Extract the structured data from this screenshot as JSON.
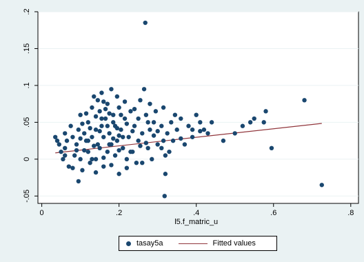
{
  "chart_data": {
    "type": "scatter",
    "title": "",
    "xlabel": "l5.f_matric_u",
    "ylabel": "",
    "xlim": [
      -0.01,
      0.82
    ],
    "ylim": [
      -0.06,
      0.2
    ],
    "xticks": [
      0,
      0.2,
      0.4,
      0.6,
      0.8
    ],
    "xtick_labels": [
      "0",
      ".2",
      ".4",
      ".6",
      ".8"
    ],
    "yticks": [
      -0.05,
      0,
      0.05,
      0.1,
      0.15,
      0.2
    ],
    "ytick_labels": [
      "-.05",
      "0",
      ".05",
      ".1",
      ".15",
      ".2"
    ],
    "grid": "horizontal",
    "legend_position": "bottom",
    "colors": {
      "scatter": "#1a476f",
      "fit": "#90353b",
      "background": "#eaf2f3",
      "plot_background": "#ffffff"
    },
    "series": [
      {
        "name": "tasay5a",
        "kind": "scatter",
        "points": [
          [
            0.035,
            0.03
          ],
          [
            0.04,
            0.025
          ],
          [
            0.045,
            0.02
          ],
          [
            0.05,
            0.01
          ],
          [
            0.055,
            0.0
          ],
          [
            0.06,
            0.015
          ],
          [
            0.065,
            0.025
          ],
          [
            0.07,
            -0.01
          ],
          [
            0.075,
            0.045
          ],
          [
            0.08,
            0.03
          ],
          [
            0.085,
            0.005
          ],
          [
            0.09,
            0.02
          ],
          [
            0.095,
            0.04
          ],
          [
            0.1,
            0.06
          ],
          [
            0.1,
            0.0
          ],
          [
            0.105,
            -0.015
          ],
          [
            0.11,
            0.035
          ],
          [
            0.115,
            0.025
          ],
          [
            0.12,
            0.05
          ],
          [
            0.12,
            0.01
          ],
          [
            0.125,
            -0.005
          ],
          [
            0.13,
            0.07
          ],
          [
            0.13,
            0.03
          ],
          [
            0.135,
            0.085
          ],
          [
            0.14,
            0.04
          ],
          [
            0.14,
            0.0
          ],
          [
            0.145,
            0.02
          ],
          [
            0.15,
            0.065
          ],
          [
            0.15,
            0.015
          ],
          [
            0.155,
            0.09
          ],
          [
            0.155,
            0.045
          ],
          [
            0.16,
            0.03
          ],
          [
            0.16,
            -0.01
          ],
          [
            0.165,
            0.055
          ],
          [
            0.17,
            0.075
          ],
          [
            0.17,
            0.01
          ],
          [
            0.175,
            0.035
          ],
          [
            0.18,
            0.095
          ],
          [
            0.18,
            0.02
          ],
          [
            0.185,
            0.06
          ],
          [
            0.19,
            0.005
          ],
          [
            0.19,
            0.045
          ],
          [
            0.195,
            0.025
          ],
          [
            0.2,
            0.07
          ],
          [
            0.2,
            -0.02
          ],
          [
            0.205,
            0.04
          ],
          [
            0.21,
            0.015
          ],
          [
            0.215,
            0.055
          ],
          [
            0.22,
            0.0
          ],
          [
            0.225,
            0.03
          ],
          [
            0.23,
            0.065
          ],
          [
            0.235,
            0.01
          ],
          [
            0.24,
            0.045
          ],
          [
            0.245,
            -0.005
          ],
          [
            0.25,
            0.025
          ],
          [
            0.255,
            0.08
          ],
          [
            0.26,
            0.035
          ],
          [
            0.265,
            0.095
          ],
          [
            0.268,
            0.185
          ],
          [
            0.27,
            0.06
          ],
          [
            0.275,
            0.015
          ],
          [
            0.28,
            0.04
          ],
          [
            0.285,
            0.0
          ],
          [
            0.29,
            0.05
          ],
          [
            0.3,
            0.02
          ],
          [
            0.31,
            0.045
          ],
          [
            0.315,
            0.07
          ],
          [
            0.32,
            -0.02
          ],
          [
            0.32,
            0.005
          ],
          [
            0.325,
            0.035
          ],
          [
            0.33,
            0.01
          ],
          [
            0.335,
            0.05
          ],
          [
            0.34,
            0.025
          ],
          [
            0.35,
            0.04
          ],
          [
            0.36,
            0.055
          ],
          [
            0.37,
            0.02
          ],
          [
            0.38,
            0.045
          ],
          [
            0.39,
            0.03
          ],
          [
            0.4,
            0.06
          ],
          [
            0.41,
            0.05
          ],
          [
            0.42,
            0.04
          ],
          [
            0.43,
            0.035
          ],
          [
            0.47,
            0.025
          ],
          [
            0.5,
            0.035
          ],
          [
            0.52,
            0.045
          ],
          [
            0.54,
            0.05
          ],
          [
            0.55,
            0.055
          ],
          [
            0.575,
            0.05
          ],
          [
            0.58,
            0.065
          ],
          [
            0.595,
            0.015
          ],
          [
            0.68,
            0.08
          ],
          [
            0.725,
            -0.035
          ],
          [
            0.318,
            -0.05
          ],
          [
            0.06,
            0.035
          ],
          [
            0.08,
            -0.012
          ],
          [
            0.095,
            -0.03
          ],
          [
            0.11,
            0.012
          ],
          [
            0.125,
            0.042
          ],
          [
            0.14,
            0.058
          ],
          [
            0.16,
            0.078
          ],
          [
            0.17,
            0.045
          ],
          [
            0.185,
            0.028
          ],
          [
            0.2,
            0.012
          ],
          [
            0.22,
            0.048
          ],
          [
            0.24,
            0.068
          ],
          [
            0.27,
            0.022
          ],
          [
            0.29,
            0.032
          ],
          [
            0.345,
            0.06
          ],
          [
            0.39,
            0.04
          ],
          [
            0.44,
            0.05
          ],
          [
            0.105,
            0.048
          ],
          [
            0.13,
            0.0
          ],
          [
            0.15,
            0.038
          ],
          [
            0.175,
            0.062
          ],
          [
            0.195,
            0.085
          ],
          [
            0.21,
            0.03
          ],
          [
            0.23,
            0.01
          ],
          [
            0.25,
            0.055
          ],
          [
            0.28,
            0.075
          ],
          [
            0.3,
            0.038
          ],
          [
            0.06,
            0.005
          ],
          [
            0.09,
            0.012
          ],
          [
            0.12,
            0.025
          ],
          [
            0.14,
            -0.018
          ],
          [
            0.16,
            0.002
          ],
          [
            0.18,
            -0.008
          ],
          [
            0.2,
            0.032
          ],
          [
            0.22,
            -0.012
          ],
          [
            0.26,
            -0.005
          ],
          [
            0.31,
            0.015
          ],
          [
            0.36,
            0.028
          ],
          [
            0.41,
            0.038
          ],
          [
            0.145,
            0.08
          ],
          [
            0.165,
            0.068
          ],
          [
            0.185,
            0.05
          ],
          [
            0.205,
            0.06
          ],
          [
            0.1,
            0.028
          ],
          [
            0.115,
            0.062
          ],
          [
            0.135,
            0.018
          ],
          [
            0.155,
            0.055
          ],
          [
            0.175,
            0.02
          ],
          [
            0.195,
            0.042
          ],
          [
            0.215,
            0.078
          ],
          [
            0.235,
            0.038
          ],
          [
            0.255,
            0.018
          ],
          [
            0.275,
            0.05
          ],
          [
            0.295,
            0.065
          ],
          [
            0.315,
            0.025
          ]
        ]
      },
      {
        "name": "Fitted values",
        "kind": "line",
        "points": [
          [
            0.035,
            0.0085
          ],
          [
            0.725,
            0.0485
          ]
        ]
      }
    ]
  }
}
